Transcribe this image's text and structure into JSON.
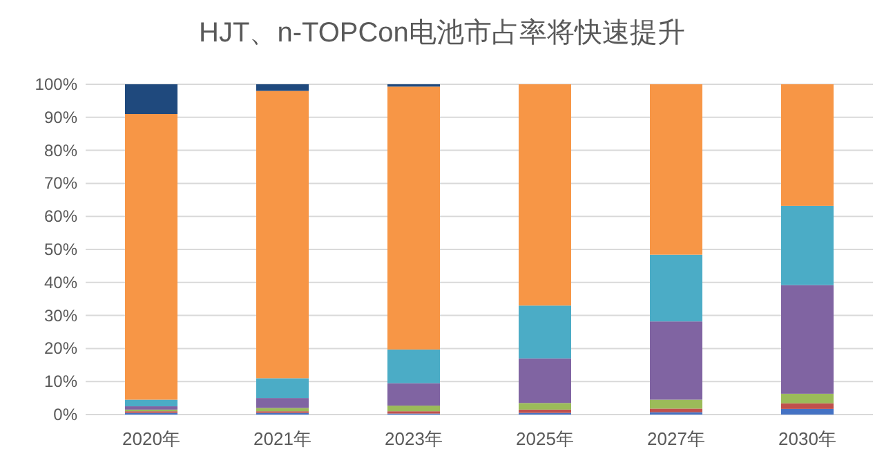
{
  "chart_data": {
    "type": "bar",
    "title": "HJT、n-TOPCon电池市占率将快速提升",
    "categories": [
      "2020年",
      "2021年",
      "2023年",
      "2025年",
      "2027年",
      "2030年"
    ],
    "stacked": true,
    "grid": "y",
    "ylim": [
      0,
      100
    ],
    "yticks": [
      {
        "value": 0,
        "label": "0%"
      },
      {
        "value": 10,
        "label": "10%"
      },
      {
        "value": 20,
        "label": "20%"
      },
      {
        "value": 30,
        "label": "30%"
      },
      {
        "value": 40,
        "label": "40%"
      },
      {
        "value": 50,
        "label": "50%"
      },
      {
        "value": 60,
        "label": "60%"
      },
      {
        "value": 70,
        "label": "70%"
      },
      {
        "value": 80,
        "label": "80%"
      },
      {
        "value": 90,
        "label": "90%"
      },
      {
        "value": 100,
        "label": "100%"
      }
    ],
    "series": [
      {
        "color": "#4472c4",
        "values": [
          0.5,
          0.5,
          0.3,
          0.5,
          0.7,
          1.7
        ]
      },
      {
        "color": "#c0504d",
        "values": [
          0.5,
          0.5,
          0.7,
          1,
          1.1,
          1.7
        ]
      },
      {
        "color": "#9bbb59",
        "values": [
          0.5,
          1,
          1.7,
          2,
          2.7,
          2.9
        ]
      },
      {
        "color": "#8064a2",
        "values": [
          1,
          3,
          6.8,
          13.5,
          23.7,
          32.9
        ]
      },
      {
        "color": "#4bacc6",
        "values": [
          2,
          6,
          10.2,
          16,
          20.2,
          24
        ]
      },
      {
        "color": "#f79646",
        "values": [
          86.5,
          87,
          79.6,
          67,
          51.6,
          36.8
        ]
      },
      {
        "color": "#1f497d",
        "values": [
          9,
          2,
          0.7,
          0,
          0,
          0
        ]
      }
    ]
  }
}
